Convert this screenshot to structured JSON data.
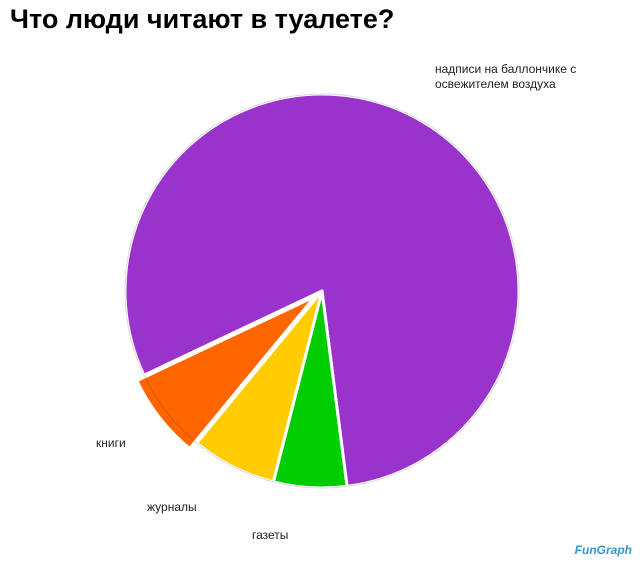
{
  "chart_data": {
    "type": "pie",
    "title": "Что люди читают в туалете?",
    "categories": [
      "надписи на баллончике с освежителем воздуха",
      "газеты",
      "журналы",
      "книги"
    ],
    "values": [
      80,
      6,
      7,
      7
    ],
    "colors": [
      "#9933cc",
      "#00cc00",
      "#ffcc00",
      "#ff6600"
    ],
    "exploded": [
      false,
      false,
      false,
      true
    ],
    "watermark": "FunGraph"
  }
}
